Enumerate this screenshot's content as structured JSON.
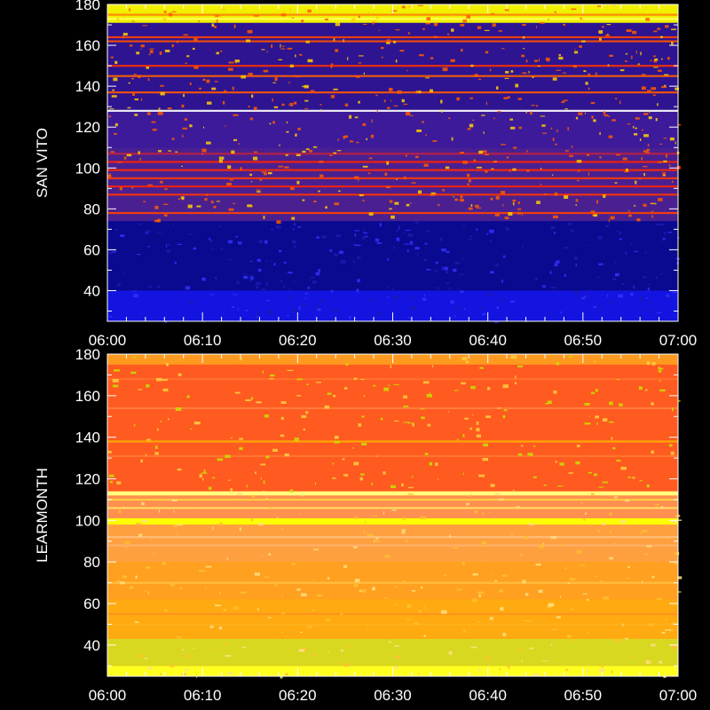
{
  "chart_data": [
    {
      "type": "heatmap",
      "ylabel": "SAN VITO",
      "x_ticks": [
        "06:00",
        "06:10",
        "06:20",
        "06:30",
        "06:40",
        "06:50",
        "07:00"
      ],
      "xlim": [
        "06:00",
        "07:00"
      ],
      "ylim": [
        25,
        180
      ],
      "y_ticks": [
        40,
        60,
        80,
        100,
        120,
        140,
        160,
        180
      ],
      "colors": {
        "low": "#0a0ad0",
        "mid": "#3a1aa0",
        "high": "#ff2a00",
        "peak": "#ffff40"
      },
      "bands": [
        {
          "from": 25,
          "to": 40,
          "level": "low",
          "color": "#1414e0"
        },
        {
          "from": 40,
          "to": 74,
          "level": "low",
          "color": "#0a0a90"
        },
        {
          "from": 74,
          "to": 110,
          "level": "mid",
          "color": "#4a2090"
        },
        {
          "from": 110,
          "to": 128,
          "level": "mid",
          "color": "#3c1a9a"
        },
        {
          "from": 128,
          "to": 171,
          "level": "mid",
          "color": "#2e1490"
        },
        {
          "from": 171,
          "to": 180,
          "level": "peak",
          "color": "#f0f000"
        }
      ],
      "lines": [
        {
          "y": 87,
          "color": "#ff3300"
        },
        {
          "y": 91,
          "color": "#ff2200"
        },
        {
          "y": 95,
          "color": "#ff3a00"
        },
        {
          "y": 99,
          "color": "#ff2a00"
        },
        {
          "y": 103,
          "color": "#ff2000"
        },
        {
          "y": 107,
          "color": "#c02040"
        },
        {
          "y": 128,
          "color": "#ffffff"
        },
        {
          "y": 145,
          "color": "#ff6000"
        },
        {
          "y": 150,
          "color": "#ff3000"
        },
        {
          "y": 162,
          "color": "#ff5000"
        },
        {
          "y": 164,
          "color": "#ff4000"
        },
        {
          "y": 173,
          "color": "#ffff60"
        },
        {
          "y": 175,
          "color": "#ff8000"
        },
        {
          "y": 78,
          "color": "#ff4000"
        },
        {
          "y": 137,
          "color": "#ff5a00"
        }
      ]
    },
    {
      "type": "heatmap",
      "ylabel": "LEARMONTH",
      "x_ticks": [
        "06:00",
        "06:10",
        "06:20",
        "06:30",
        "06:40",
        "06:50",
        "07:00"
      ],
      "xlim": [
        "06:00",
        "07:00"
      ],
      "ylim": [
        25,
        180
      ],
      "y_ticks": [
        40,
        60,
        80,
        100,
        120,
        140,
        160,
        180
      ],
      "colors": {
        "low": "#ffa500",
        "mid": "#ff6a20",
        "high": "#ff4a10",
        "peak": "#ffff30"
      },
      "bands": [
        {
          "from": 25,
          "to": 30,
          "level": "peak",
          "color": "#ffff20"
        },
        {
          "from": 30,
          "to": 43,
          "level": "peak",
          "color": "#d8d820"
        },
        {
          "from": 43,
          "to": 62,
          "level": "low",
          "color": "#ffaa10"
        },
        {
          "from": 62,
          "to": 80,
          "level": "low",
          "color": "#ffa020"
        },
        {
          "from": 80,
          "to": 98,
          "level": "low",
          "color": "#ffa040"
        },
        {
          "from": 98,
          "to": 101,
          "level": "peak",
          "color": "#ffff00"
        },
        {
          "from": 101,
          "to": 112,
          "level": "mid",
          "color": "#ff9050"
        },
        {
          "from": 112,
          "to": 114,
          "level": "peak",
          "color": "#ffff80"
        },
        {
          "from": 114,
          "to": 175,
          "level": "high",
          "color": "#ff5a20"
        },
        {
          "from": 175,
          "to": 180,
          "level": "low",
          "color": "#ff9a20"
        }
      ],
      "lines": [
        {
          "y": 106,
          "color": "#ffe060"
        },
        {
          "y": 110,
          "color": "#ffd040"
        },
        {
          "y": 92,
          "color": "#ffc080"
        },
        {
          "y": 88,
          "color": "#ffb070"
        },
        {
          "y": 70,
          "color": "#ffc040"
        },
        {
          "y": 55,
          "color": "#ff9020"
        },
        {
          "y": 50,
          "color": "#ffb020"
        },
        {
          "y": 154,
          "color": "#ff8040"
        },
        {
          "y": 168,
          "color": "#ff7030"
        },
        {
          "y": 138,
          "color": "#ffb000"
        },
        {
          "y": 131,
          "color": "#ff7a30"
        }
      ]
    }
  ]
}
